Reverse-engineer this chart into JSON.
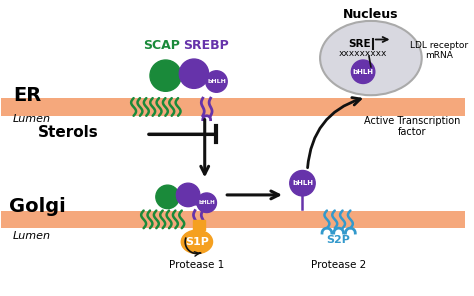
{
  "bg_color": "#ffffff",
  "membrane_color": "#f5a87c",
  "green_color": "#1a8a3a",
  "purple_color": "#6633aa",
  "orange_color": "#f5a020",
  "blue_color": "#3399cc",
  "nucleus_fill": "#d8d8e0",
  "nucleus_edge": "#aaaaaa",
  "arrow_color": "#111111",
  "er_label": "ER",
  "golgi_label": "Golgi",
  "lumen_label": "Lumen",
  "scap_label": "SCAP",
  "srebp_label": "SREBP",
  "sterols_label": "Sterols",
  "nucleus_label": "Nucleus",
  "sre_label": "SRE",
  "ldl_label": "LDL receptor\nmRNA",
  "bhlh_label": "bHLH",
  "s1p_label": "S1P",
  "s2p_label": "S2P",
  "protease1_label": "Protease 1",
  "protease2_label": "Protease 2",
  "active_tf_label": "Active Transcription\nfactor",
  "dna_label": "xxxxxxxxx",
  "fig_w": 4.74,
  "fig_h": 2.96,
  "dpi": 100
}
